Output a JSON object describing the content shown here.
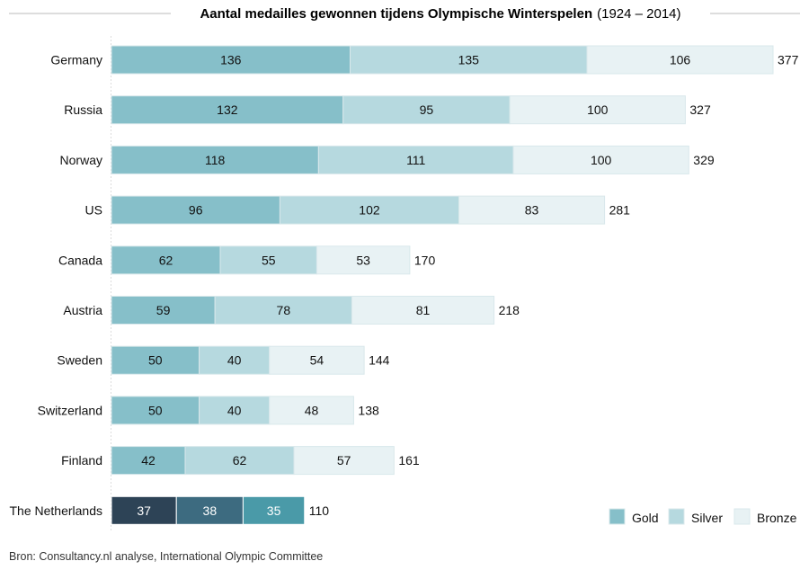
{
  "chart_data": {
    "type": "bar",
    "orientation": "horizontal",
    "stacked": true,
    "title": "Aantal medailles gewonnen tijdens Olympische Winterspelen",
    "title_years": "(1924 – 2014)",
    "categories": [
      "Germany",
      "Russia",
      "Norway",
      "US",
      "Canada",
      "Austria",
      "Sweden",
      "Switzerland",
      "Finland",
      "The Netherlands"
    ],
    "series": [
      {
        "name": "Gold",
        "color": "#86bfc9",
        "values": [
          136,
          132,
          118,
          96,
          62,
          59,
          50,
          50,
          42,
          37
        ]
      },
      {
        "name": "Silver",
        "color": "#b6d9df",
        "values": [
          135,
          95,
          111,
          102,
          55,
          78,
          40,
          40,
          62,
          38
        ]
      },
      {
        "name": "Bronze",
        "color": "#e8f2f4",
        "values": [
          106,
          100,
          100,
          83,
          53,
          81,
          54,
          48,
          57,
          35
        ]
      }
    ],
    "totals": [
      377,
      327,
      329,
      281,
      170,
      218,
      144,
      138,
      161,
      110
    ],
    "highlight": {
      "category": "The Netherlands",
      "colors": [
        "#2d4356",
        "#3d6b80",
        "#4a9aa8"
      ]
    },
    "xlim": [
      0,
      377
    ],
    "legend_position": "bottom-right",
    "grid": false
  },
  "source_text": "Bron: Consultancy.nl analyse, International Olympic Committee"
}
